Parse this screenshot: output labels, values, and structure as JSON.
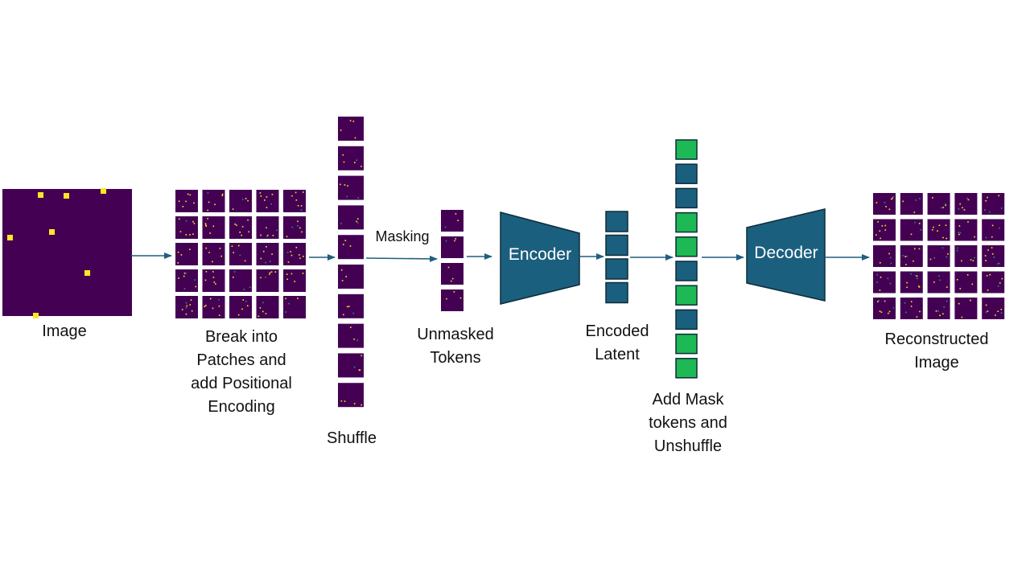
{
  "colors": {
    "patch_bg": "#440154",
    "pixel_yellow": "#fde725",
    "pixel_teal": "#21918c",
    "block_fill": "#1b5f7e",
    "block_stroke": "#0d2c3a",
    "mask_green": "#1db954",
    "arrow": "#1f5f80"
  },
  "labels": {
    "image": "Image",
    "patches": [
      "Break into",
      "Patches and",
      "add Positional",
      "Encoding"
    ],
    "shuffle": "Shuffle",
    "masking": "Masking",
    "unmasked": [
      "Unmasked",
      "Tokens"
    ],
    "encoder": "Encoder",
    "encoded": [
      "Encoded",
      "Latent"
    ],
    "mask_tokens": [
      "Add Mask",
      "tokens and",
      "Unshuffle"
    ],
    "decoder": "Decoder",
    "reconstructed": [
      "Reconstructed",
      "Image"
    ]
  },
  "mask_sequence": [
    "mask",
    "latent",
    "latent",
    "mask",
    "mask",
    "latent",
    "mask",
    "latent",
    "mask",
    "mask"
  ],
  "icons": {
    "patch": "image-patch-icon",
    "token": "token-square-icon",
    "arrow": "arrow-icon"
  }
}
